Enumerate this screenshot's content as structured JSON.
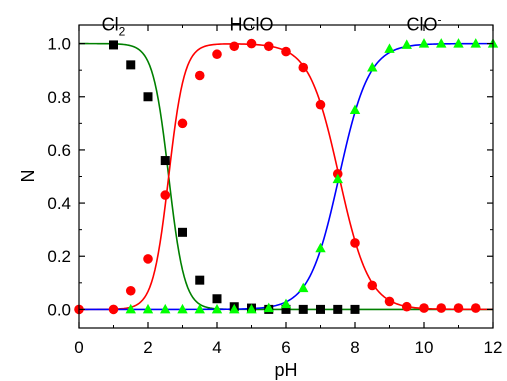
{
  "chart_data": {
    "type": "scatter",
    "xlabel": "pH",
    "ylabel": "N",
    "xlim": [
      0,
      12
    ],
    "ylim": [
      -0.07,
      1.07
    ],
    "x_ticks": [
      0,
      2,
      4,
      6,
      8,
      10,
      12
    ],
    "y_ticks": [
      0.0,
      0.2,
      0.4,
      0.6,
      0.8,
      1.0
    ],
    "x_tick_labels": [
      "0",
      "2",
      "4",
      "6",
      "8",
      "10",
      "12"
    ],
    "y_tick_labels": [
      "0.0",
      "0.2",
      "0.4",
      "0.6",
      "0.8",
      "1.0"
    ],
    "grid": false,
    "annotations": [
      {
        "base": "Cl",
        "sub": "2",
        "sup": "",
        "x": 1.0,
        "y": 1.06
      },
      {
        "base": "HClO",
        "sub": "",
        "sup": "",
        "x": 5.0,
        "y": 1.06
      },
      {
        "base": "ClO",
        "sub": "",
        "sup": "-",
        "x": 10.0,
        "y": 1.06
      }
    ],
    "series": [
      {
        "label_ref": 0,
        "marker": "square",
        "marker_color": "#000000",
        "line_color": "#008000",
        "x": [
          1.0,
          1.5,
          2.0,
          2.5,
          3.0,
          3.5,
          4.0,
          4.5,
          5.0,
          5.5,
          6.0,
          6.5,
          7.0,
          7.5,
          8.0
        ],
        "y": [
          0.995,
          0.92,
          0.8,
          0.56,
          0.29,
          0.11,
          0.04,
          0.01,
          0.005,
          0.0,
          0.0,
          0.0,
          0.0,
          0.0,
          0.0
        ]
      },
      {
        "label_ref": 1,
        "marker": "circle",
        "marker_color": "#ff0000",
        "line_color": "#ff0000",
        "x": [
          0.0,
          1.0,
          1.5,
          2.0,
          2.5,
          3.0,
          3.5,
          4.0,
          4.5,
          5.0,
          5.5,
          6.0,
          6.5,
          7.0,
          7.5,
          8.0,
          8.5,
          9.0,
          9.5,
          10.0,
          10.5,
          11.0,
          11.5
        ],
        "y": [
          0.0,
          0.0,
          0.07,
          0.19,
          0.43,
          0.7,
          0.88,
          0.96,
          0.99,
          1.0,
          0.99,
          0.97,
          0.91,
          0.77,
          0.51,
          0.25,
          0.09,
          0.03,
          0.01,
          0.005,
          0.005,
          0.005,
          0.005
        ]
      },
      {
        "label_ref": 2,
        "marker": "triangle",
        "marker_color": "#00ff00",
        "line_color": "#0000ff",
        "x": [
          1.5,
          2.0,
          2.5,
          3.0,
          3.5,
          4.0,
          4.5,
          5.0,
          5.5,
          6.0,
          6.5,
          7.0,
          7.5,
          8.0,
          8.5,
          9.0,
          9.5,
          10.0,
          10.5,
          11.0,
          11.5,
          12.0
        ],
        "y": [
          0.0,
          0.0,
          0.0,
          0.0,
          0.0,
          0.0,
          0.0,
          0.0,
          0.005,
          0.02,
          0.08,
          0.23,
          0.49,
          0.75,
          0.91,
          0.98,
          0.995,
          1.0,
          1.0,
          1.0,
          1.0,
          1.0
        ]
      }
    ],
    "curves": [
      {
        "line_color": "#008000",
        "func": "cl2"
      },
      {
        "line_color": "#ff0000",
        "func": "hclo"
      },
      {
        "line_color": "#0000ff",
        "func": "clo"
      }
    ]
  }
}
